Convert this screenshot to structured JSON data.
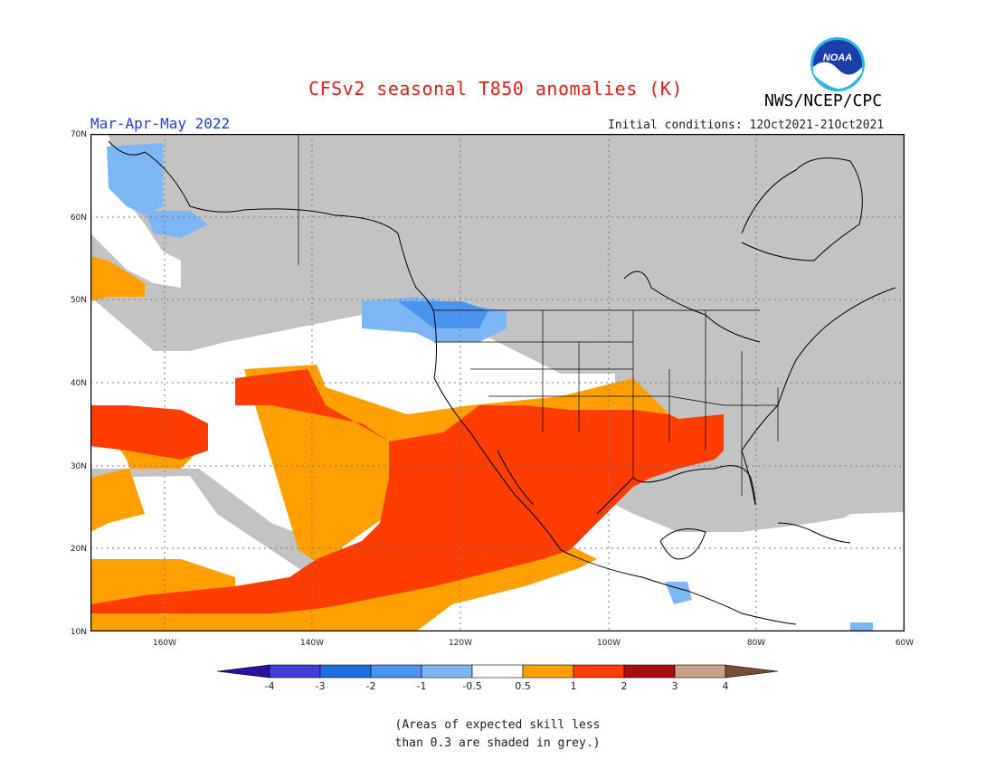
{
  "header": {
    "title": "CFSv2 seasonal T850 anomalies (K)",
    "season": "Mar-Apr-May 2022",
    "agency": "NWS/NCEP/CPC",
    "initial_conditions": "Initial conditions: 12Oct2021-21Oct2021",
    "logo_text": "NOAA"
  },
  "map": {
    "lat_labels": [
      "70N",
      "60N",
      "50N",
      "40N",
      "30N",
      "20N",
      "10N"
    ],
    "lon_labels": [
      "160W",
      "140W",
      "120W",
      "100W",
      "80W",
      "60W"
    ],
    "extent": {
      "lon_min": -170,
      "lon_max": -60,
      "lat_min": 10,
      "lat_max": 70
    }
  },
  "legend": {
    "labels": [
      "-4",
      "-3",
      "-2",
      "-1",
      "-0.5",
      "0.5",
      "1",
      "2",
      "3",
      "4"
    ],
    "colors": [
      "#2a0fa0",
      "#3f3fd6",
      "#1f6fe0",
      "#4a94ee",
      "#7db6f4",
      "#ffffff",
      "#ffa000",
      "#ff3d00",
      "#a80d0d",
      "#c8a08c",
      "#7a4a3a"
    ]
  },
  "footnote": {
    "line1": "(Areas of expected skill less",
    "line2": "than 0.3 are shaded in grey.)"
  },
  "colors": {
    "skill_grey": "#c3c3c3",
    "warm_orange": "#ffa000",
    "warm_red": "#ff3d00",
    "cool_light_blue": "#7db6f4",
    "cool_blue": "#4a94ee",
    "title_red": "#e0201b",
    "season_blue": "#1f3fd8"
  }
}
